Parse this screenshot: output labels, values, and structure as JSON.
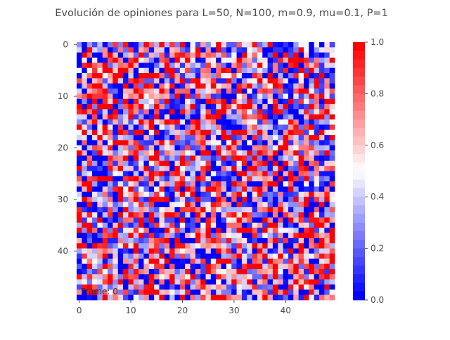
{
  "chart_data": {
    "type": "heatmap",
    "title": "Evolución de opiniones para L=50, N=100, m=0.9, mu=0.1, P=1",
    "grid_size": 50,
    "x_ticks": [
      0,
      10,
      20,
      30,
      40
    ],
    "y_ticks": [
      0,
      10,
      20,
      30,
      40
    ],
    "value_range": [
      0.0,
      1.0
    ],
    "colormap": "bwr",
    "colormap_levels": 30,
    "colorbar_ticks": [
      "0.0",
      "0.2",
      "0.4",
      "0.6",
      "0.8",
      "1.0"
    ],
    "annotation": "Frame: 0",
    "grid": false,
    "colors": {
      "low": "#0000ff",
      "mid": "#ffffff",
      "high": "#ff0000",
      "text": "#4d4d4d"
    }
  }
}
